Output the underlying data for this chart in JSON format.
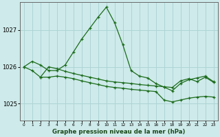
{
  "title": "Graphe pression niveau de la mer (hPa)",
  "background_color": "#ceeaea",
  "grid_color": "#aed4d4",
  "line_color": "#1a6b1a",
  "x_min": 0,
  "x_max": 23,
  "y_ticks": [
    1025,
    1026,
    1027
  ],
  "y_min": 1024.55,
  "y_max": 1027.75,
  "series1_x": [
    0,
    1,
    2,
    3,
    4,
    5,
    6,
    7,
    8,
    9,
    10,
    11,
    12,
    13,
    14,
    15,
    16,
    17,
    18,
    19,
    20,
    21,
    22,
    23
  ],
  "series1_y": [
    1026.0,
    1026.15,
    1026.05,
    1025.9,
    1025.9,
    1026.05,
    1026.4,
    1026.75,
    1027.05,
    1027.35,
    1027.62,
    1027.2,
    1026.6,
    1025.9,
    1025.75,
    1025.7,
    1025.55,
    1025.45,
    1025.35,
    1025.55,
    1025.65,
    1025.7,
    1025.75,
    1025.6
  ],
  "series2_x": [
    0,
    1,
    2,
    3,
    4,
    5,
    6,
    7,
    8,
    9,
    10,
    11,
    12,
    13,
    14,
    15,
    16,
    17,
    18,
    19,
    20,
    21,
    22,
    23
  ],
  "series2_y": [
    1026.0,
    1025.9,
    1025.72,
    1025.72,
    1025.75,
    1025.72,
    1025.68,
    1025.62,
    1025.57,
    1025.52,
    1025.47,
    1025.44,
    1025.42,
    1025.39,
    1025.37,
    1025.35,
    1025.33,
    1025.1,
    1025.05,
    1025.1,
    1025.15,
    1025.18,
    1025.2,
    1025.18
  ],
  "series3_x": [
    2,
    3,
    4,
    5,
    6,
    7,
    8,
    9,
    10,
    11,
    12,
    13,
    14,
    15,
    16,
    17,
    18,
    19,
    20,
    21,
    22,
    23
  ],
  "series3_y": [
    1025.72,
    1026.0,
    1025.95,
    1025.88,
    1025.82,
    1025.77,
    1025.72,
    1025.67,
    1025.62,
    1025.59,
    1025.57,
    1025.55,
    1025.52,
    1025.5,
    1025.48,
    1025.46,
    1025.44,
    1025.62,
    1025.68,
    1025.6,
    1025.72,
    1025.58
  ]
}
